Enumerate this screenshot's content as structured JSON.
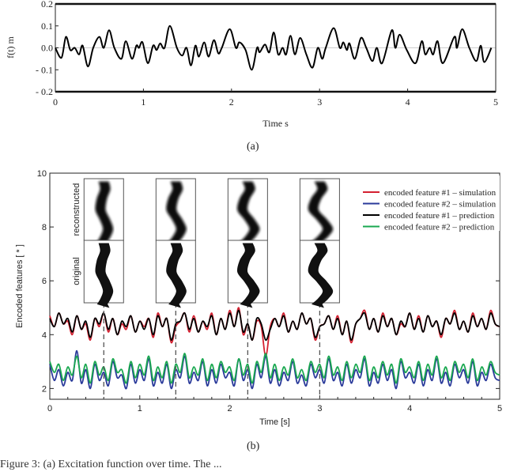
{
  "chart_data": [
    {
      "type": "line",
      "panel": "(a)",
      "xlabel": "Time  s",
      "ylabel": "f(t)  m",
      "xlim": [
        0,
        5
      ],
      "ylim": [
        -0.2,
        0.2
      ],
      "xticks": [
        "0",
        "1",
        "2",
        "3",
        "4",
        "5"
      ],
      "yticks": [
        "0.2",
        "0.1",
        "0.0",
        "- 0.1",
        "- 0.2"
      ],
      "ytick_values": [
        0.2,
        0.1,
        0,
        -0.1,
        -0.2
      ],
      "series": [
        {
          "name": "f(t)",
          "color": "#000000",
          "points": [
            [
              0,
              0
            ],
            [
              0.07,
              -0.045
            ],
            [
              0.12,
              0.05
            ],
            [
              0.17,
              -0.01
            ],
            [
              0.22,
              0
            ],
            [
              0.27,
              -0.03
            ],
            [
              0.31,
              0.01
            ],
            [
              0.37,
              -0.085
            ],
            [
              0.43,
              0
            ],
            [
              0.5,
              0.05
            ],
            [
              0.55,
              0
            ],
            [
              0.61,
              0.08
            ],
            [
              0.67,
              0
            ],
            [
              0.75,
              -0.05
            ],
            [
              0.8,
              0.03
            ],
            [
              0.87,
              -0.05
            ],
            [
              0.92,
              0.01
            ],
            [
              0.95,
              0
            ],
            [
              0.99,
              0.025
            ],
            [
              1.05,
              -0.07
            ],
            [
              1.11,
              0.01
            ],
            [
              1.15,
              -0.01
            ],
            [
              1.19,
              0.02
            ],
            [
              1.24,
              0
            ],
            [
              1.3,
              0.1
            ],
            [
              1.38,
              0
            ],
            [
              1.44,
              -0.035
            ],
            [
              1.49,
              0
            ],
            [
              1.54,
              -0.08
            ],
            [
              1.59,
              0.01
            ],
            [
              1.63,
              -0.04
            ],
            [
              1.69,
              0.025
            ],
            [
              1.74,
              -0.04
            ],
            [
              1.8,
              0.035
            ],
            [
              1.85,
              -0.025
            ],
            [
              1.89,
              0
            ],
            [
              1.98,
              0.085
            ],
            [
              2.05,
              0
            ],
            [
              2.09,
              0.025
            ],
            [
              2.16,
              -0.01
            ],
            [
              2.23,
              -0.1
            ],
            [
              2.29,
              0
            ],
            [
              2.32,
              -0.02
            ],
            [
              2.38,
              0.015
            ],
            [
              2.43,
              -0.02
            ],
            [
              2.48,
              0.07
            ],
            [
              2.53,
              -0.03
            ],
            [
              2.58,
              0
            ],
            [
              2.62,
              -0.03
            ],
            [
              2.67,
              0.055
            ],
            [
              2.72,
              -0.03
            ],
            [
              2.78,
              0.045
            ],
            [
              2.85,
              -0.03
            ],
            [
              2.92,
              -0.09
            ],
            [
              2.98,
              0
            ],
            [
              3.03,
              -0.05
            ],
            [
              3.07,
              0
            ],
            [
              3.16,
              0.09
            ],
            [
              3.23,
              0
            ],
            [
              3.27,
              0.025
            ],
            [
              3.31,
              -0.01
            ],
            [
              3.34,
              0.02
            ],
            [
              3.4,
              -0.05
            ],
            [
              3.47,
              0.045
            ],
            [
              3.53,
              0
            ],
            [
              3.6,
              -0.06
            ],
            [
              3.65,
              0
            ],
            [
              3.71,
              -0.07
            ],
            [
              3.82,
              0.08
            ],
            [
              3.86,
              0
            ],
            [
              3.91,
              0.06
            ],
            [
              3.99,
              -0.01
            ],
            [
              4.09,
              -0.07
            ],
            [
              4.16,
              0.03
            ],
            [
              4.2,
              -0.03
            ],
            [
              4.25,
              0
            ],
            [
              4.29,
              -0.03
            ],
            [
              4.34,
              0.03
            ],
            [
              4.4,
              -0.07
            ],
            [
              4.53,
              0.05
            ],
            [
              4.56,
              0
            ],
            [
              4.62,
              0.085
            ],
            [
              4.7,
              0
            ],
            [
              4.78,
              -0.06
            ],
            [
              4.83,
              0.01
            ],
            [
              4.87,
              -0.065
            ],
            [
              4.95,
              0
            ]
          ]
        }
      ]
    },
    {
      "type": "line",
      "panel": "(b)",
      "xlabel": "Time [s]",
      "ylabel": "Encoded features [ * ]",
      "xlim": [
        0,
        5
      ],
      "ylim": [
        1.6,
        10
      ],
      "xticks": [
        "0",
        "1",
        "2",
        "3",
        "4",
        "5"
      ],
      "yticks": [
        "10",
        "8",
        "6",
        "4",
        "2"
      ],
      "ytick_values": [
        10,
        8,
        6,
        4,
        2
      ],
      "x_step": 0.05,
      "dashed_markers": [
        0.6,
        1.4,
        2.2,
        3.0
      ],
      "inset_labels": [
        "reconstructed",
        "original"
      ],
      "legend_position": "top-right",
      "series": [
        {
          "name": "encoded feature #1 – simulation",
          "color": "#d42030",
          "values": [
            4.7,
            4.3,
            4.8,
            4.4,
            4.5,
            4.0,
            4.7,
            4.2,
            4.4,
            3.8,
            4.6,
            4.3,
            4.8,
            4.1,
            4.6,
            4.0,
            4.4,
            4.2,
            4.7,
            4.1,
            4.5,
            4.3,
            4.6,
            3.9,
            4.8,
            4.3,
            4.6,
            3.7,
            4.3,
            4.5,
            4.8,
            4.1,
            4.7,
            4.1,
            4.5,
            4.2,
            4.8,
            4.0,
            4.6,
            4.2,
            4.9,
            4.3,
            5.0,
            4.0,
            4.4,
            3.8,
            4.5,
            4.3,
            3.2,
            4.3,
            4.6,
            4.3,
            4.8,
            4.1,
            4.5,
            4.2,
            4.8,
            4.4,
            4.6,
            3.8,
            4.3,
            4.4,
            4.7,
            4.2,
            4.7,
            4.0,
            4.5,
            3.7,
            4.4,
            4.6,
            4.9,
            4.2,
            4.6,
            4.1,
            4.8,
            4.3,
            4.6,
            4.0,
            4.4,
            4.3,
            4.8,
            4.2,
            4.7,
            4.1,
            4.7,
            4.3,
            4.5,
            3.9,
            4.6,
            4.4,
            4.9,
            4.2,
            4.5,
            4.1,
            4.8,
            4.3,
            4.6,
            4.2,
            4.9,
            4.4,
            4.3
          ]
        },
        {
          "name": "encoded feature #2 – simulation",
          "color": "#2a3a9a",
          "values": [
            2.9,
            2.3,
            2.7,
            2.1,
            2.6,
            2.3,
            3.4,
            2.2,
            2.7,
            2.0,
            2.9,
            2.3,
            2.6,
            2.1,
            3.0,
            2.4,
            2.5,
            2.0,
            2.9,
            2.2,
            2.7,
            2.3,
            3.1,
            2.1,
            2.6,
            2.2,
            2.9,
            2.0,
            2.7,
            2.4,
            3.2,
            2.2,
            2.6,
            2.3,
            3.0,
            2.1,
            2.7,
            2.2,
            2.9,
            2.4,
            2.6,
            2.1,
            3.1,
            2.3,
            2.7,
            2.0,
            2.9,
            2.4,
            3.2,
            2.2,
            2.7,
            2.1,
            2.6,
            2.3,
            3.0,
            2.2,
            2.5,
            2.1,
            2.9,
            2.4,
            2.7,
            2.2,
            3.1,
            2.3,
            2.6,
            2.1,
            2.9,
            2.2,
            2.7,
            2.4,
            3.1,
            2.1,
            2.6,
            2.2,
            2.9,
            2.3,
            2.7,
            2.0,
            3.0,
            2.4,
            2.6,
            2.2,
            2.9,
            2.1,
            2.7,
            2.3,
            3.1,
            2.2,
            2.6,
            2.1,
            2.9,
            2.4,
            2.7,
            2.2,
            3.0,
            2.1,
            2.6,
            2.3,
            2.9,
            2.4,
            2.3
          ]
        },
        {
          "name": "encoded feature #1 – prediction",
          "color": "#000000",
          "values": [
            4.6,
            4.3,
            4.8,
            4.4,
            4.6,
            4.1,
            4.7,
            4.2,
            4.5,
            3.9,
            4.6,
            4.4,
            4.8,
            4.2,
            4.6,
            4.0,
            4.5,
            4.3,
            4.7,
            4.1,
            4.5,
            4.2,
            4.6,
            4.0,
            4.7,
            4.3,
            4.6,
            3.8,
            4.4,
            4.5,
            4.8,
            4.2,
            4.6,
            4.1,
            4.5,
            4.3,
            4.7,
            4.0,
            4.6,
            4.2,
            4.8,
            4.3,
            4.9,
            4.1,
            4.4,
            3.8,
            4.6,
            4.4,
            3.8,
            4.2,
            4.6,
            4.3,
            4.7,
            4.1,
            4.5,
            4.2,
            4.8,
            4.4,
            4.6,
            3.9,
            4.3,
            4.4,
            4.7,
            4.2,
            4.6,
            4.0,
            4.5,
            3.8,
            4.4,
            4.6,
            4.8,
            4.2,
            4.6,
            4.1,
            4.7,
            4.3,
            4.6,
            4.0,
            4.5,
            4.3,
            4.8,
            4.2,
            4.6,
            4.1,
            4.7,
            4.3,
            4.5,
            4.0,
            4.6,
            4.4,
            4.8,
            4.2,
            4.5,
            4.1,
            4.7,
            4.3,
            4.6,
            4.2,
            4.8,
            4.4,
            4.3
          ]
        },
        {
          "name": "encoded feature #2 – prediction",
          "color": "#1aa850",
          "values": [
            3.0,
            2.6,
            2.9,
            2.3,
            2.8,
            2.5,
            3.2,
            2.4,
            2.9,
            2.2,
            3.0,
            2.5,
            2.8,
            2.3,
            3.1,
            2.6,
            2.7,
            2.2,
            3.0,
            2.4,
            2.9,
            2.5,
            3.2,
            2.3,
            2.8,
            2.4,
            3.0,
            2.2,
            2.9,
            2.6,
            3.3,
            2.4,
            2.8,
            2.5,
            3.1,
            2.3,
            2.9,
            2.4,
            3.0,
            2.6,
            2.8,
            2.3,
            3.1,
            2.5,
            2.9,
            2.2,
            3.0,
            2.6,
            3.3,
            2.4,
            2.9,
            2.3,
            2.8,
            2.5,
            3.1,
            2.4,
            2.7,
            2.3,
            3.0,
            2.6,
            2.9,
            2.4,
            3.2,
            2.5,
            2.8,
            2.3,
            3.0,
            2.4,
            2.9,
            2.6,
            3.2,
            2.3,
            2.8,
            2.4,
            3.0,
            2.5,
            2.9,
            2.2,
            3.1,
            2.6,
            2.8,
            2.4,
            3.0,
            2.3,
            2.9,
            2.5,
            3.2,
            2.4,
            2.8,
            2.3,
            3.0,
            2.6,
            2.9,
            2.4,
            3.1,
            2.3,
            2.8,
            2.5,
            3.0,
            2.6,
            2.5
          ]
        }
      ]
    }
  ],
  "captions": {
    "a": "(a)",
    "b": "(b)",
    "figure": "Figure 3:  (a) Excitation function over time.  The ..."
  }
}
